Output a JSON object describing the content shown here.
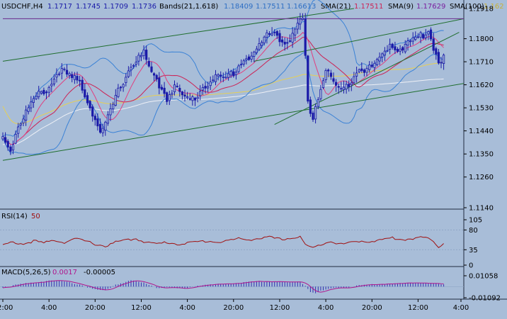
{
  "header": {
    "symbol": "USDCHF,H4",
    "ohlc": [
      "1.1717",
      "1.1745",
      "1.1709",
      "1.1736"
    ],
    "bands_label": "Bands(21,1.618)",
    "bands_values": [
      "1.18409",
      "1.17511",
      "1.16613"
    ],
    "sma21_label": "SMA(21)",
    "sma21_value": "1.17511",
    "sma9_label": "SMA(9)",
    "sma9_value": "1.17629",
    "sma100_label": "SMA(100)",
    "sma100_value": "1.162"
  },
  "rsi_header": {
    "label": "RSI(14)",
    "value": "50"
  },
  "macd_header": {
    "label": "MACD(5,26,5)",
    "value1": "0.0017",
    "value2": "-0.00005"
  },
  "colors": {
    "background": "#a8bdd8",
    "candle": "#1a1aa8",
    "bands": "#3b82d6",
    "sma21": "#cc2255",
    "sma9": "#cc2255",
    "sma100": "#e6cf55",
    "sma200": "#eef0f6",
    "trend": "#1f6e2e",
    "resistance": "#6a2a8c",
    "rsi": "#a01010",
    "macd_hist": "#3030b0",
    "macd_signal": "#b0158c",
    "axis_text": "#000000"
  },
  "chart_data": [
    {
      "type": "candlestick",
      "title": "USDCHF,H4",
      "ylim": [
        1.114,
        1.1918
      ],
      "y_ticks": [
        "1.1918",
        "1.1800",
        "1.1710",
        "1.1620",
        "1.1530",
        "1.1440",
        "1.1350",
        "1.1260",
        "1.1140"
      ],
      "x_ticks": [
        "12:00",
        "4:00",
        "20:00",
        "12:00",
        "4:00",
        "20:00",
        "12:00",
        "4:00",
        "20:00",
        "12:00",
        "4:00"
      ],
      "anchors": [
        [
          0,
          1.1415
        ],
        [
          3,
          1.137
        ],
        [
          6,
          1.146
        ],
        [
          10,
          1.153
        ],
        [
          14,
          1.158
        ],
        [
          18,
          1.161
        ],
        [
          22,
          1.168
        ],
        [
          26,
          1.165
        ],
        [
          30,
          1.163
        ],
        [
          33,
          1.156
        ],
        [
          36,
          1.149
        ],
        [
          38,
          1.143
        ],
        [
          40,
          1.146
        ],
        [
          44,
          1.157
        ],
        [
          48,
          1.166
        ],
        [
          52,
          1.172
        ],
        [
          55,
          1.174
        ],
        [
          58,
          1.166
        ],
        [
          61,
          1.162
        ],
        [
          64,
          1.157
        ],
        [
          67,
          1.162
        ],
        [
          70,
          1.157
        ],
        [
          74,
          1.156
        ],
        [
          78,
          1.161
        ],
        [
          82,
          1.165
        ],
        [
          86,
          1.164
        ],
        [
          90,
          1.167
        ],
        [
          94,
          1.172
        ],
        [
          98,
          1.174
        ],
        [
          102,
          1.18
        ],
        [
          106,
          1.183
        ],
        [
          110,
          1.178
        ],
        [
          113,
          1.181
        ],
        [
          116,
          1.186
        ],
        [
          117,
          1.188
        ],
        [
          118,
          1.172
        ],
        [
          119,
          1.154
        ],
        [
          121,
          1.15
        ],
        [
          123,
          1.157
        ],
        [
          126,
          1.168
        ],
        [
          129,
          1.163
        ],
        [
          132,
          1.159
        ],
        [
          135,
          1.163
        ],
        [
          139,
          1.169
        ],
        [
          143,
          1.168
        ],
        [
          147,
          1.172
        ],
        [
          151,
          1.178
        ],
        [
          155,
          1.176
        ],
        [
          159,
          1.179
        ],
        [
          163,
          1.181
        ],
        [
          166,
          1.183
        ],
        [
          168,
          1.177
        ],
        [
          170,
          1.171
        ],
        [
          172,
          1.1736
        ]
      ],
      "lines": [
        {
          "name": "trend-upper",
          "from": [
            0,
            1.1712
          ],
          "to": [
            137,
            1.1918
          ]
        },
        {
          "name": "trend-lower",
          "from": [
            0,
            1.1325
          ],
          "to": [
            180,
            1.1625
          ]
        },
        {
          "name": "trend-mid",
          "from": [
            98,
            1.1712
          ],
          "to": [
            180,
            1.1878
          ]
        },
        {
          "name": "trend-short",
          "from": [
            106,
            1.1465
          ],
          "to": [
            178,
            1.1825
          ]
        },
        {
          "name": "resistance",
          "from": [
            0,
            1.1878
          ],
          "to": [
            180,
            1.1878
          ]
        }
      ]
    },
    {
      "type": "line",
      "title": "RSI(14)",
      "ylim": [
        0,
        100
      ],
      "y_ticks": [
        "105",
        "80",
        "35",
        "0"
      ],
      "anchors": [
        [
          0,
          45
        ],
        [
          4,
          52
        ],
        [
          8,
          48
        ],
        [
          12,
          55
        ],
        [
          16,
          50
        ],
        [
          20,
          57
        ],
        [
          24,
          52
        ],
        [
          28,
          60
        ],
        [
          32,
          55
        ],
        [
          36,
          48
        ],
        [
          40,
          43
        ],
        [
          44,
          52
        ],
        [
          48,
          57
        ],
        [
          52,
          60
        ],
        [
          56,
          52
        ],
        [
          60,
          48
        ],
        [
          64,
          52
        ],
        [
          68,
          48
        ],
        [
          72,
          50
        ],
        [
          76,
          53
        ],
        [
          80,
          55
        ],
        [
          84,
          52
        ],
        [
          88,
          56
        ],
        [
          92,
          60
        ],
        [
          96,
          58
        ],
        [
          100,
          61
        ],
        [
          104,
          63
        ],
        [
          108,
          59
        ],
        [
          112,
          61
        ],
        [
          116,
          64
        ],
        [
          118,
          47
        ],
        [
          121,
          38
        ],
        [
          124,
          48
        ],
        [
          128,
          55
        ],
        [
          132,
          47
        ],
        [
          136,
          52
        ],
        [
          140,
          55
        ],
        [
          144,
          54
        ],
        [
          148,
          58
        ],
        [
          152,
          62
        ],
        [
          156,
          58
        ],
        [
          160,
          61
        ],
        [
          164,
          63
        ],
        [
          168,
          55
        ],
        [
          170,
          42
        ],
        [
          172,
          50
        ]
      ]
    },
    {
      "type": "bar",
      "title": "MACD(5,26,5)",
      "ylim": [
        -0.0109,
        0.0106
      ],
      "y_ticks": [
        "0.01058",
        "-0.01092"
      ],
      "anchors": [
        [
          0,
          -0.001
        ],
        [
          6,
          0.002
        ],
        [
          12,
          0.004
        ],
        [
          18,
          0.006
        ],
        [
          24,
          0.005
        ],
        [
          30,
          0.002
        ],
        [
          36,
          -0.003
        ],
        [
          40,
          -0.004
        ],
        [
          44,
          0.002
        ],
        [
          50,
          0.006
        ],
        [
          56,
          0.003
        ],
        [
          60,
          -0.001
        ],
        [
          64,
          -0.001
        ],
        [
          70,
          -0.002
        ],
        [
          76,
          0.001
        ],
        [
          82,
          0.002
        ],
        [
          88,
          0.003
        ],
        [
          94,
          0.004
        ],
        [
          100,
          0.005
        ],
        [
          106,
          0.005
        ],
        [
          112,
          0.004
        ],
        [
          116,
          0.005
        ],
        [
          118,
          0.001
        ],
        [
          120,
          -0.005
        ],
        [
          122,
          -0.006
        ],
        [
          126,
          -0.003
        ],
        [
          130,
          -0.001
        ],
        [
          134,
          -0.001
        ],
        [
          138,
          0.001
        ],
        [
          144,
          0.002
        ],
        [
          150,
          0.003
        ],
        [
          156,
          0.003
        ],
        [
          162,
          0.004
        ],
        [
          168,
          0.003
        ],
        [
          172,
          0.0017
        ]
      ]
    }
  ]
}
